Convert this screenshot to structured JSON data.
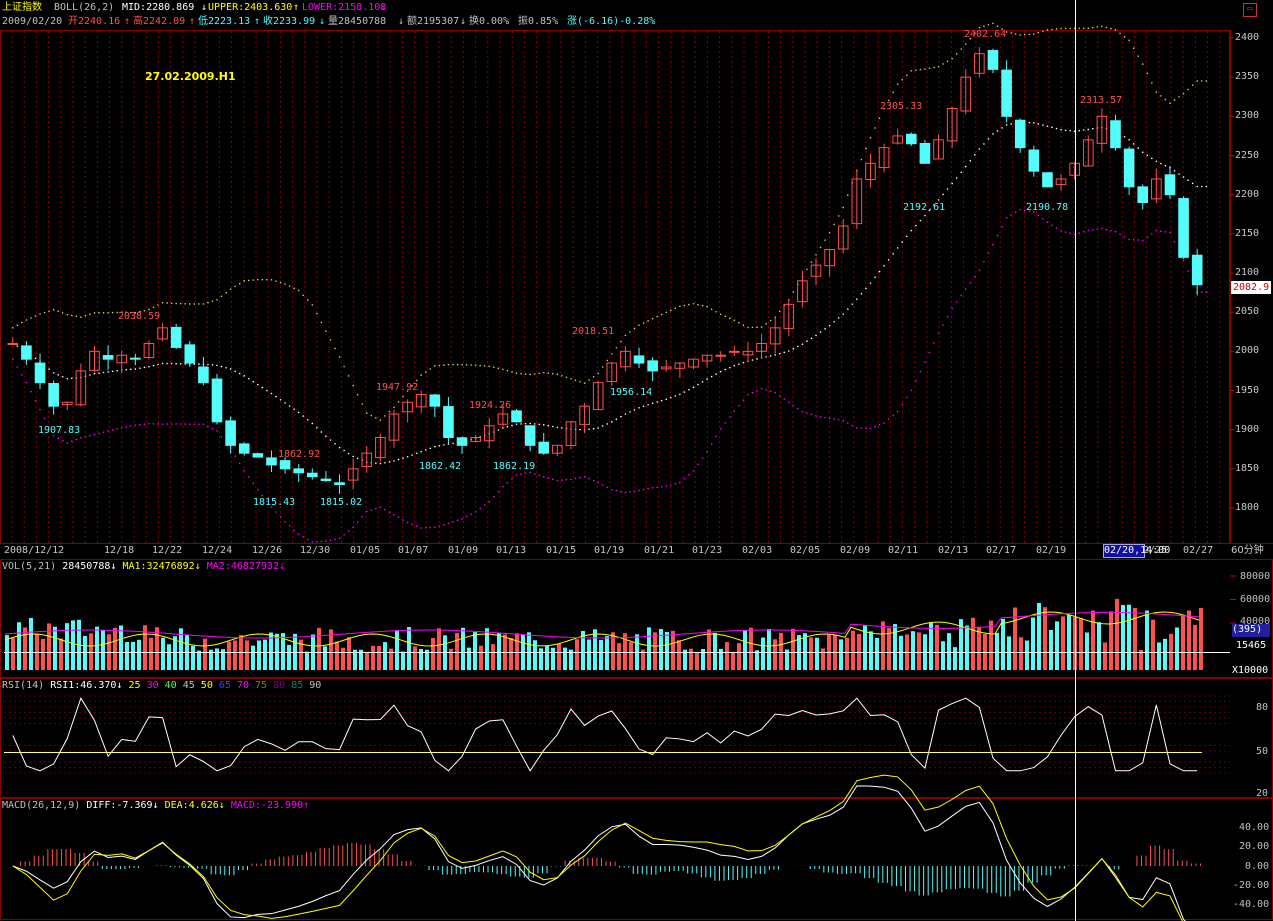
{
  "header": {
    "name": "上证指数",
    "boll_label": "BOLL(26,2)",
    "mid": "MID:2280.869",
    "upper": "UPPER:2403.630",
    "lower": "LOWER:2158.108",
    "date": "2009/02/20",
    "open": "开2240.16",
    "high": "高2242.09",
    "low": "低2223.13",
    "close": "收2233.99",
    "volume": "量28450788",
    "amount": "额2195307",
    "turnover": "换0.00%",
    "amplitude": "振0.85%",
    "change": "涨(-6.16)-0.28%"
  },
  "annotation": "27.02.2009.H1",
  "period_label": "60分钟",
  "current_price": "2082.9",
  "cursor_label": "02/20,14:00",
  "vol_panel": {
    "label": "VOL(5,21)",
    "value": "28450788",
    "ma1": "MA1:32476892",
    "ma2": "MA2:46827932",
    "unit": "X10000",
    "box_value": "(395)",
    "current": "15465",
    "ticks": [
      "80000",
      "60000",
      "40000"
    ]
  },
  "rsi_panel": {
    "label": "RSI(14)",
    "value": "RSI1:46.370",
    "levels": [
      "25",
      "30",
      "40",
      "45",
      "50",
      "65",
      "70",
      "75",
      "80",
      "85",
      "90"
    ],
    "ticks": [
      "80",
      "50",
      "20"
    ]
  },
  "macd_panel": {
    "label": "MACD(26,12,9)",
    "diff": "DIFF:-7.369",
    "dea": "DEA:4.626",
    "macd": "MACD:-23.990",
    "ticks": [
      "40.00",
      "20.00",
      "0.00",
      "-20.00",
      "-40.00"
    ]
  },
  "colors": {
    "up": "#ff5050",
    "down": "#54fcfc",
    "grid": "#8a0000",
    "boll_mid": "#ffffff",
    "boll_lower": "#ff00ff",
    "ma1": "#ffff00",
    "ma2": "#ff00ff"
  },
  "chart_data": {
    "type": "candlestick",
    "y_ticks": [
      2400,
      2350,
      2300,
      2250,
      2200,
      2150,
      2100,
      2050,
      2000,
      1950,
      1900,
      1850,
      1800
    ],
    "x_ticks": [
      "2008/12/12",
      "12/18",
      "12/22",
      "12/24",
      "12/26",
      "12/30",
      "01/05",
      "01/07",
      "01/09",
      "01/13",
      "01/15",
      "01/19",
      "01/21",
      "01/23",
      "02/03",
      "02/05",
      "02/09",
      "02/11",
      "02/13",
      "02/17",
      "02/19",
      "02/20,14:00",
      "2/25",
      "02/27"
    ],
    "peak_labels": [
      {
        "text": "2038.59",
        "kind": "high"
      },
      {
        "text": "1907.83",
        "kind": "low"
      },
      {
        "text": "1862.92",
        "kind": "high"
      },
      {
        "text": "1815.43",
        "kind": "low"
      },
      {
        "text": "1815.02",
        "kind": "low"
      },
      {
        "text": "1947.92",
        "kind": "high"
      },
      {
        "text": "1862.42",
        "kind": "low"
      },
      {
        "text": "1924.26",
        "kind": "high"
      },
      {
        "text": "1862.19",
        "kind": "low"
      },
      {
        "text": "2018.51",
        "kind": "high"
      },
      {
        "text": "1956.14",
        "kind": "low"
      },
      {
        "text": "2305.33",
        "kind": "high"
      },
      {
        "text": "2192.61",
        "kind": "low"
      },
      {
        "text": "2402.64",
        "kind": "high"
      },
      {
        "text": "2190.78",
        "kind": "low"
      },
      {
        "text": "2313.57",
        "kind": "high"
      }
    ],
    "close_path": [
      2010,
      1990,
      1960,
      1930,
      1935,
      1975,
      2000,
      1990,
      1995,
      1990,
      2010,
      2030,
      2005,
      1985,
      1960,
      1910,
      1880,
      1870,
      1865,
      1855,
      1850,
      1845,
      1840,
      1835,
      1830,
      1850,
      1870,
      1890,
      1920,
      1935,
      1945,
      1930,
      1890,
      1880,
      1890,
      1905,
      1920,
      1910,
      1880,
      1870,
      1880,
      1910,
      1930,
      1960,
      1985,
      2000,
      1985,
      1975,
      1980,
      1985,
      1990,
      1995,
      1995,
      2000,
      2000,
      2010,
      2030,
      2060,
      2090,
      2110,
      2130,
      2160,
      2220,
      2240,
      2260,
      2275,
      2265,
      2240,
      2270,
      2310,
      2350,
      2380,
      2360,
      2300,
      2260,
      2230,
      2210,
      2220,
      2240,
      2270,
      2300,
      2260,
      2210,
      2190,
      2220,
      2200,
      2120,
      2085
    ]
  }
}
